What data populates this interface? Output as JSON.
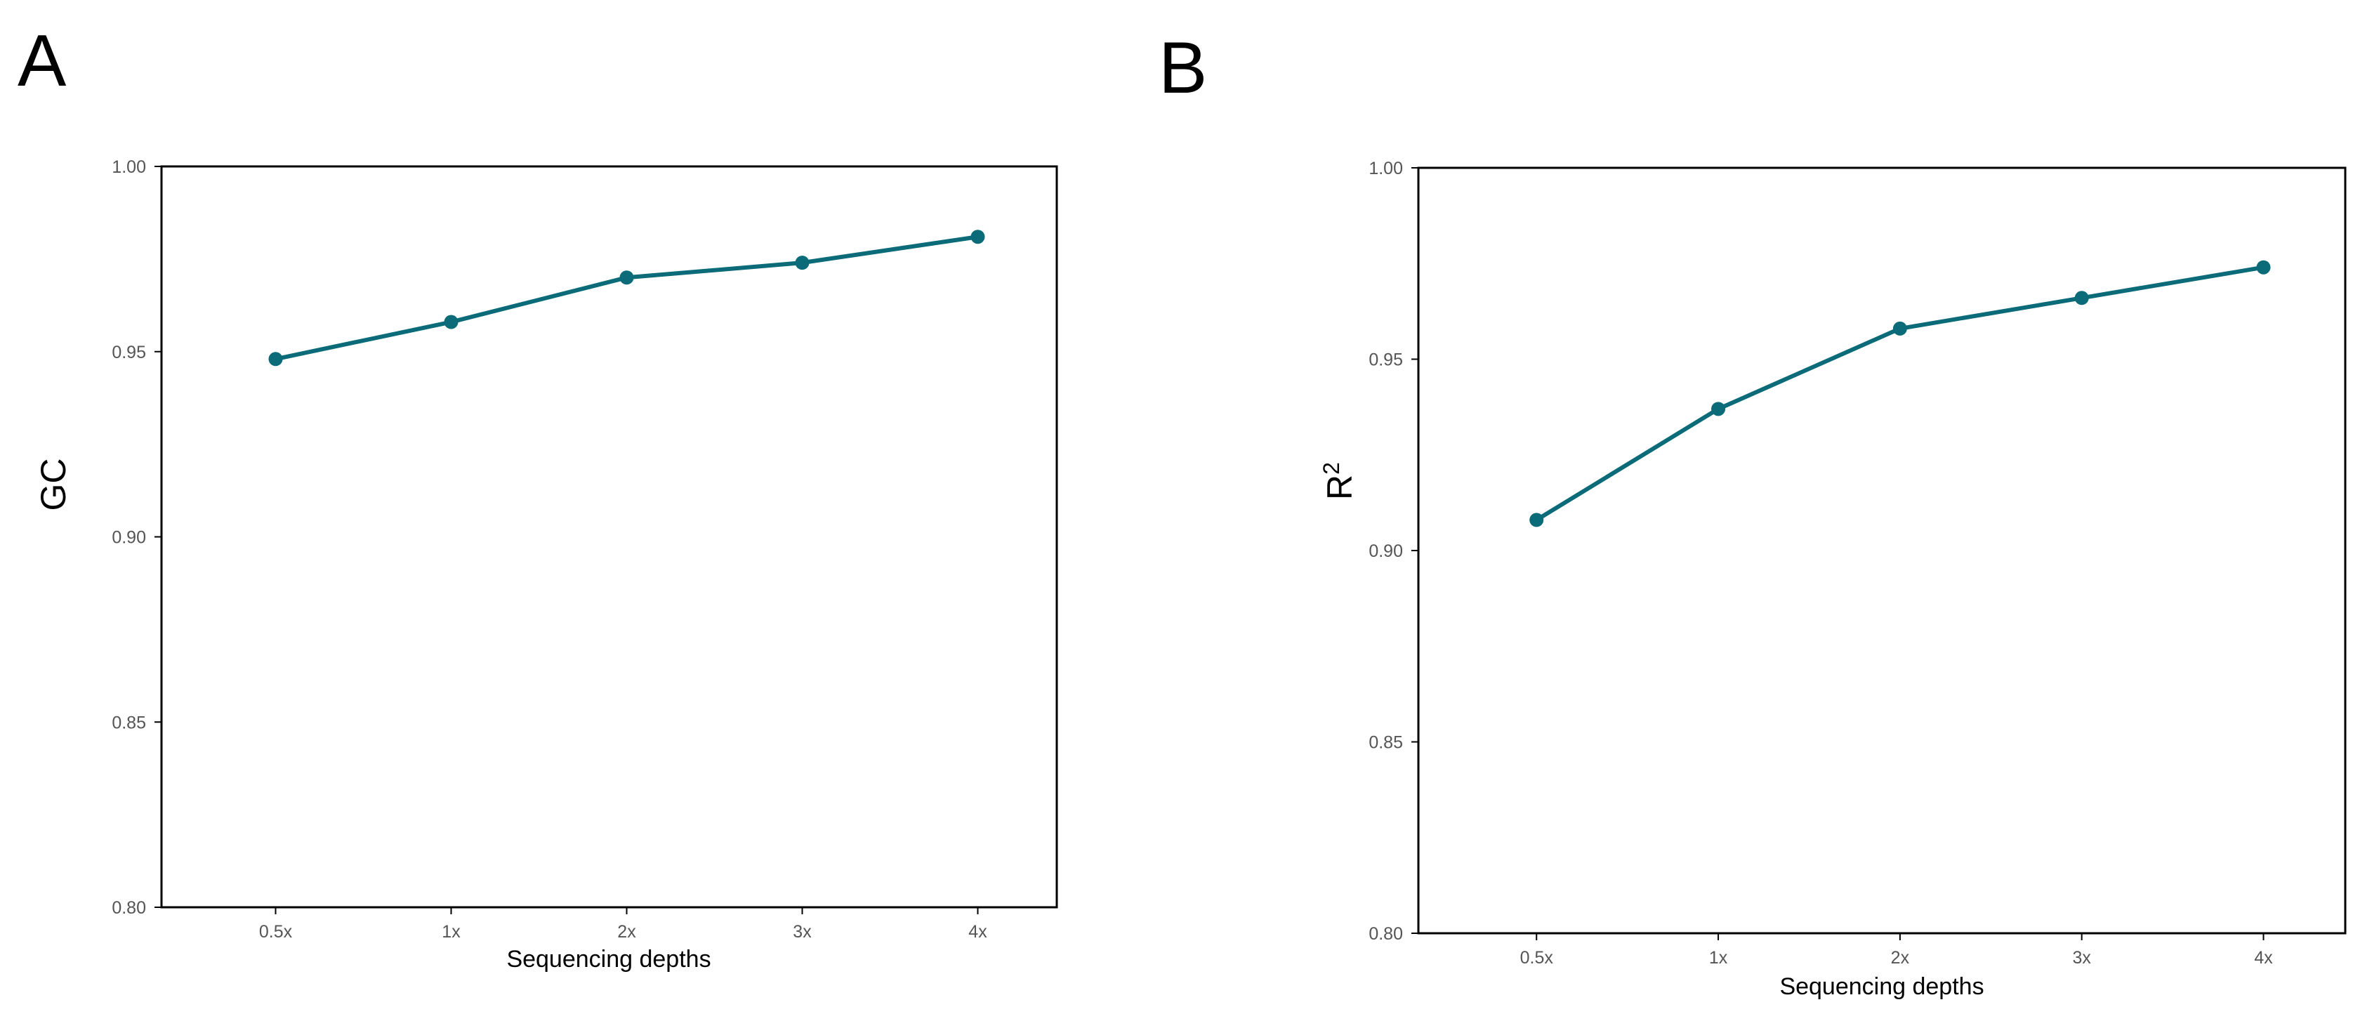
{
  "chart_data": [
    {
      "panel_label": "A",
      "type": "line",
      "categories": [
        "0.5x",
        "1x",
        "2x",
        "3x",
        "4x"
      ],
      "series": [
        {
          "values": [
            0.948,
            0.958,
            0.97,
            0.974,
            0.981
          ],
          "color": "#0b6b78"
        }
      ],
      "xlabel": "Sequencing depths",
      "ylabel": "GC",
      "ylabel_superscript": "",
      "ylim": [
        0.8,
        1.0
      ],
      "yticks": [
        "0.80",
        "0.85",
        "0.90",
        "0.95",
        "1.00"
      ],
      "grid": false,
      "markers": true
    },
    {
      "panel_label": "B",
      "type": "line",
      "categories": [
        "0.5x",
        "1x",
        "2x",
        "3x",
        "4x"
      ],
      "series": [
        {
          "values": [
            0.908,
            0.937,
            0.958,
            0.966,
            0.974
          ],
          "color": "#0b6b78"
        }
      ],
      "xlabel": "Sequencing depths",
      "ylabel": "R",
      "ylabel_superscript": "2",
      "ylim": [
        0.8,
        1.0
      ],
      "yticks": [
        "0.80",
        "0.85",
        "0.90",
        "0.95",
        "1.00"
      ],
      "grid": false,
      "markers": true
    }
  ]
}
